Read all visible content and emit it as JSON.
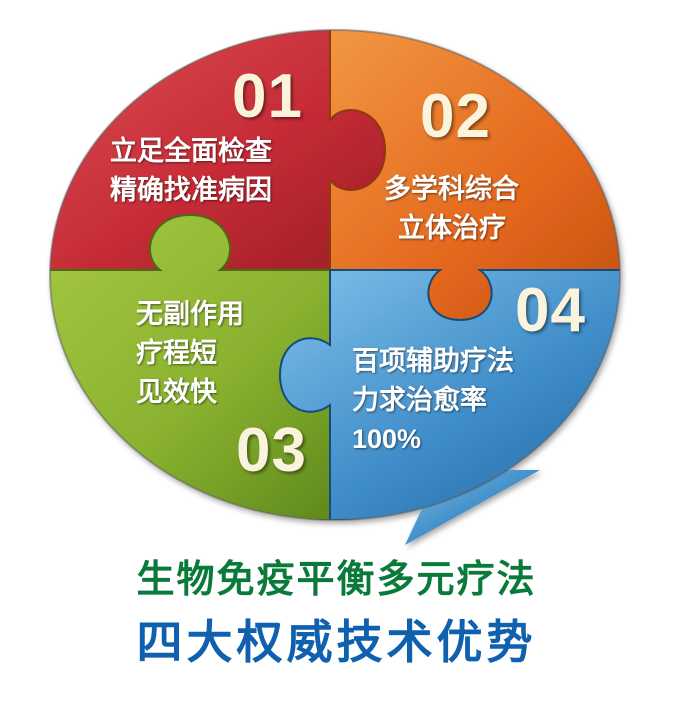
{
  "pieces": [
    {
      "number": "01",
      "lines": [
        "立足全面检查",
        "精确找准病因"
      ],
      "color": "#c9303a"
    },
    {
      "number": "02",
      "lines": [
        "多学科综合",
        "立体治疗"
      ],
      "color": "#e36a1e"
    },
    {
      "number": "03",
      "lines": [
        "无副作用",
        "疗程短",
        "见效快"
      ],
      "color": "#8ab431"
    },
    {
      "number": "04",
      "lines": [
        "百项辅助疗法",
        "力求治愈率",
        "100%"
      ],
      "color": "#3a86c2"
    }
  ],
  "headline": {
    "line1": "生物免疫平衡多元疗法",
    "line2": "四大权威技术优势",
    "line1_color": "#0a7a3a",
    "line2_color": "#1060b0"
  }
}
